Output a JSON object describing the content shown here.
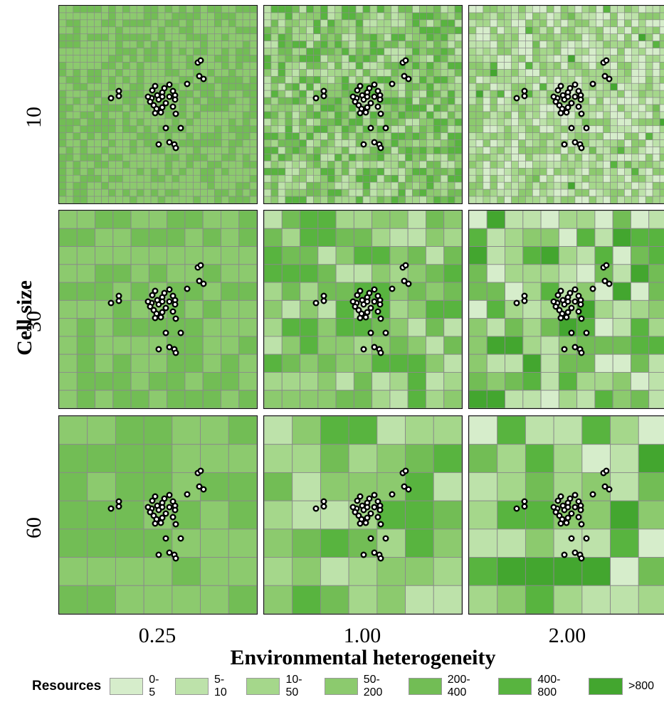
{
  "y_axis": {
    "title": "Cell size",
    "rows": [
      "10",
      "30",
      "60"
    ]
  },
  "x_axis": {
    "title": "Environmental heterogeneity",
    "cols": [
      "0.25",
      "1.00",
      "2.00"
    ]
  },
  "legend": {
    "title": "Resources",
    "items": [
      {
        "label": "0-5",
        "color": "#d6edcb"
      },
      {
        "label": "5-10",
        "color": "#bde2aa"
      },
      {
        "label": "10-50",
        "color": "#a5d78b"
      },
      {
        "label": "50-200",
        "color": "#8cca6e"
      },
      {
        "label": "200-400",
        "color": "#72bd55"
      },
      {
        "label": "400-800",
        "color": "#58b43f"
      },
      {
        "label": ">800",
        "color": "#43a62f"
      }
    ]
  },
  "grid_line_color": "#8a8a8a"
}
